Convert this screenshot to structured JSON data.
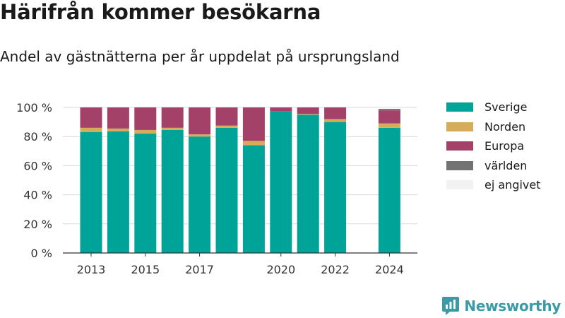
{
  "title": "Härifrån kommer besökarna",
  "subtitle": "Andel av gästnätterna per år uppdelat på ursprungsland",
  "brand": "Newsworthy",
  "chart_data": {
    "type": "bar",
    "stacked": true,
    "x": [
      2013,
      2014,
      2015,
      2016,
      2017,
      2018,
      2019,
      2020,
      2021,
      2022,
      2024
    ],
    "x_tick_labels": [
      "2013",
      "2015",
      "2017",
      "2020",
      "2022",
      "2024"
    ],
    "x_tick_values": [
      2013,
      2015,
      2017,
      2020,
      2022,
      2024
    ],
    "y_tick_labels": [
      "0 %",
      "20 %",
      "40 %",
      "60 %",
      "80 %",
      "100 %"
    ],
    "ylim": [
      0,
      100
    ],
    "grid": true,
    "legend_position": "right",
    "series": [
      {
        "name": "Sverige",
        "color": "#00a397",
        "values": [
          83,
          83.5,
          82,
          84.5,
          80,
          86,
          74,
          97.5,
          95,
          90,
          86
        ]
      },
      {
        "name": "Norden",
        "color": "#d4ac5c",
        "values": [
          3,
          2,
          2.5,
          1.5,
          1.5,
          1.5,
          3,
          0,
          0.5,
          2,
          3
        ]
      },
      {
        "name": "Europa",
        "color": "#a44168",
        "values": [
          14,
          14.5,
          15.5,
          14,
          18.5,
          12.5,
          23,
          2.5,
          4.5,
          8,
          9
        ]
      },
      {
        "name": "världen",
        "color": "#737373",
        "values": [
          0,
          0,
          0,
          0,
          0,
          0,
          0,
          0,
          0,
          0,
          1
        ]
      },
      {
        "name": "ej angivet",
        "color": "#f2f2f2",
        "values": [
          0,
          0,
          0,
          0,
          0,
          0,
          0,
          0,
          0,
          0,
          0
        ]
      }
    ]
  }
}
